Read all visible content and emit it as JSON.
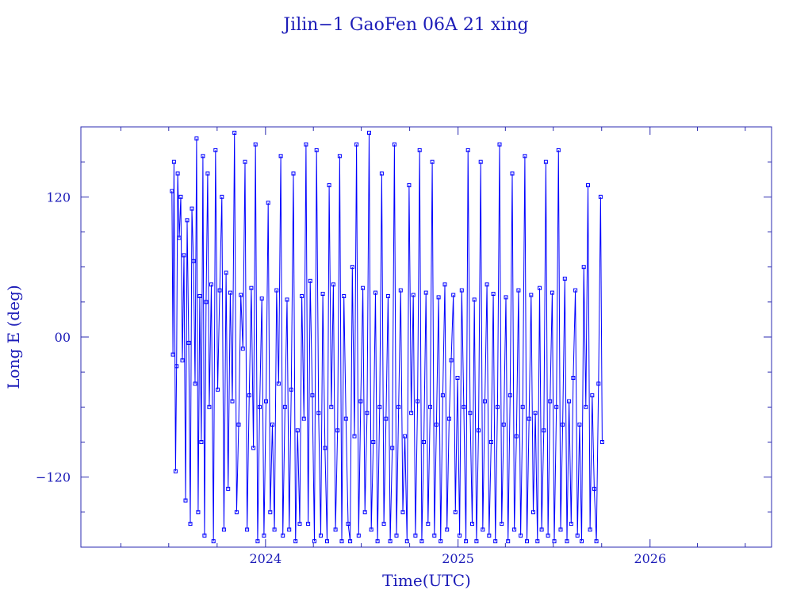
{
  "chart_data": {
    "type": "scatter",
    "title": "Jilin−1 GaoFen 06A 21 xing",
    "xlabel": "Time(UTC)",
    "ylabel": "Long E (deg)",
    "x_unit": "date",
    "xlim": [
      "2023-01-15",
      "2026-08-20"
    ],
    "ylim": [
      -180,
      180
    ],
    "x_ticks": [
      {
        "value": "2024-01-01",
        "label": "2024"
      },
      {
        "value": "2025-01-01",
        "label": "2025"
      },
      {
        "value": "2026-01-01",
        "label": "2026"
      }
    ],
    "y_ticks": [
      {
        "value": 120,
        "label": "120"
      },
      {
        "value": 0,
        "label": "00"
      },
      {
        "value": -120,
        "label": "−120"
      }
    ],
    "grid": false,
    "legend": "none",
    "line_color": "#0000ff",
    "marker": "small-square",
    "series": [
      {
        "x": [
          "2023-07-07",
          "2023-07-09",
          "2023-07-11",
          "2023-07-14",
          "2023-07-16",
          "2023-07-18",
          "2023-07-21",
          "2023-07-24",
          "2023-07-27",
          "2023-07-30",
          "2023-08-02",
          "2023-08-05",
          "2023-08-08",
          "2023-08-11",
          "2023-08-14",
          "2023-08-17",
          "2023-08-20",
          "2023-08-23",
          "2023-08-26",
          "2023-08-29",
          "2023-09-01",
          "2023-09-04",
          "2023-09-07",
          "2023-09-10",
          "2023-09-13",
          "2023-09-16",
          "2023-09-20",
          "2023-09-24",
          "2023-09-28",
          "2023-10-02",
          "2023-10-06",
          "2023-10-10",
          "2023-10-14",
          "2023-10-18",
          "2023-10-22",
          "2023-10-26",
          "2023-10-30",
          "2023-11-03",
          "2023-11-07",
          "2023-11-11",
          "2023-11-15",
          "2023-11-19",
          "2023-11-23",
          "2023-11-27",
          "2023-12-01",
          "2023-12-05",
          "2023-12-09",
          "2023-12-13",
          "2023-12-17",
          "2023-12-21",
          "2023-12-25",
          "2023-12-29",
          "2024-01-02",
          "2024-01-06",
          "2024-01-10",
          "2024-01-14",
          "2024-01-18",
          "2024-01-22",
          "2024-01-26",
          "2024-01-30",
          "2024-02-03",
          "2024-02-07",
          "2024-02-11",
          "2024-02-15",
          "2024-02-19",
          "2024-02-23",
          "2024-02-27",
          "2024-03-02",
          "2024-03-06",
          "2024-03-10",
          "2024-03-14",
          "2024-03-18",
          "2024-03-22",
          "2024-03-26",
          "2024-03-30",
          "2024-04-03",
          "2024-04-07",
          "2024-04-11",
          "2024-04-15",
          "2024-04-19",
          "2024-04-23",
          "2024-04-27",
          "2024-05-01",
          "2024-05-05",
          "2024-05-09",
          "2024-05-13",
          "2024-05-17",
          "2024-05-21",
          "2024-05-25",
          "2024-05-29",
          "2024-06-02",
          "2024-06-06",
          "2024-06-10",
          "2024-06-14",
          "2024-06-18",
          "2024-06-22",
          "2024-06-26",
          "2024-06-30",
          "2024-07-04",
          "2024-07-08",
          "2024-07-12",
          "2024-07-16",
          "2024-07-20",
          "2024-07-24",
          "2024-07-28",
          "2024-08-01",
          "2024-08-05",
          "2024-08-09",
          "2024-08-13",
          "2024-08-17",
          "2024-08-21",
          "2024-08-25",
          "2024-08-29",
          "2024-09-02",
          "2024-09-06",
          "2024-09-10",
          "2024-09-14",
          "2024-09-18",
          "2024-09-22",
          "2024-09-26",
          "2024-09-30",
          "2024-10-04",
          "2024-10-08",
          "2024-10-12",
          "2024-10-16",
          "2024-10-20",
          "2024-10-24",
          "2024-10-28",
          "2024-11-01",
          "2024-11-05",
          "2024-11-09",
          "2024-11-13",
          "2024-11-17",
          "2024-11-21",
          "2024-11-25",
          "2024-11-29",
          "2024-12-03",
          "2024-12-07",
          "2024-12-11",
          "2024-12-15",
          "2024-12-19",
          "2024-12-23",
          "2024-12-27",
          "2024-12-31",
          "2025-01-04",
          "2025-01-08",
          "2025-01-12",
          "2025-01-16",
          "2025-01-20",
          "2025-01-24",
          "2025-01-28",
          "2025-02-01",
          "2025-02-05",
          "2025-02-09",
          "2025-02-13",
          "2025-02-17",
          "2025-02-21",
          "2025-02-25",
          "2025-03-01",
          "2025-03-05",
          "2025-03-09",
          "2025-03-13",
          "2025-03-17",
          "2025-03-21",
          "2025-03-25",
          "2025-03-29",
          "2025-04-02",
          "2025-04-06",
          "2025-04-10",
          "2025-04-14",
          "2025-04-18",
          "2025-04-22",
          "2025-04-26",
          "2025-04-30",
          "2025-05-04",
          "2025-05-08",
          "2025-05-12",
          "2025-05-16",
          "2025-05-20",
          "2025-05-24",
          "2025-05-28",
          "2025-06-01",
          "2025-06-05",
          "2025-06-09",
          "2025-06-13",
          "2025-06-17",
          "2025-06-21",
          "2025-06-25",
          "2025-06-29",
          "2025-07-03",
          "2025-07-07",
          "2025-07-11",
          "2025-07-15",
          "2025-07-19",
          "2025-07-23",
          "2025-07-27",
          "2025-07-31",
          "2025-08-04",
          "2025-08-08",
          "2025-08-12",
          "2025-08-16",
          "2025-08-20",
          "2025-08-24",
          "2025-08-28",
          "2025-09-01",
          "2025-09-05",
          "2025-09-09",
          "2025-09-13",
          "2025-09-17",
          "2025-09-21",
          "2025-09-25",
          "2025-09-29",
          "2025-10-02"
        ],
        "y": [
          125,
          -15,
          150,
          -115,
          -25,
          140,
          85,
          120,
          -20,
          70,
          -140,
          100,
          -5,
          -160,
          110,
          65,
          -40,
          170,
          -150,
          35,
          -90,
          155,
          -170,
          30,
          140,
          -60,
          45,
          -175,
          160,
          -45,
          40,
          120,
          -165,
          55,
          -130,
          38,
          -55,
          175,
          -150,
          -75,
          36,
          -10,
          150,
          -165,
          -50,
          42,
          -95,
          165,
          -175,
          -60,
          33,
          -170,
          -55,
          115,
          -150,
          -75,
          -165,
          40,
          -40,
          155,
          -170,
          -60,
          32,
          -165,
          -45,
          140,
          -175,
          -80,
          -160,
          35,
          -70,
          165,
          -160,
          48,
          -50,
          -175,
          160,
          -65,
          -170,
          37,
          -95,
          -175,
          130,
          -60,
          45,
          -165,
          -80,
          155,
          -175,
          35,
          -70,
          -160,
          -175,
          60,
          -85,
          165,
          -170,
          -55,
          42,
          -150,
          -65,
          175,
          -165,
          -90,
          38,
          -175,
          -60,
          140,
          -160,
          -70,
          35,
          -175,
          -95,
          165,
          -170,
          -60,
          40,
          -150,
          -85,
          -175,
          130,
          -65,
          36,
          -170,
          -55,
          160,
          -175,
          -90,
          38,
          -160,
          -60,
          150,
          -170,
          -75,
          34,
          -175,
          -50,
          45,
          -165,
          -70,
          -20,
          36,
          -150,
          -35,
          -170,
          40,
          -60,
          -175,
          160,
          -65,
          -160,
          32,
          -175,
          -80,
          150,
          -165,
          -55,
          45,
          -170,
          -90,
          37,
          -175,
          -60,
          165,
          -160,
          -75,
          34,
          -175,
          -50,
          140,
          -165,
          -85,
          40,
          -170,
          -60,
          155,
          -175,
          -70,
          36,
          -150,
          -65,
          -175,
          42,
          -165,
          -80,
          150,
          -170,
          -55,
          38,
          -175,
          -60,
          160,
          -165,
          -75,
          50,
          -175,
          -55,
          -160,
          -35,
          40,
          -170,
          -75,
          -175,
          60,
          -60,
          130,
          -165,
          -50,
          -130,
          -175,
          -40,
          120,
          -90
        ]
      }
    ]
  }
}
